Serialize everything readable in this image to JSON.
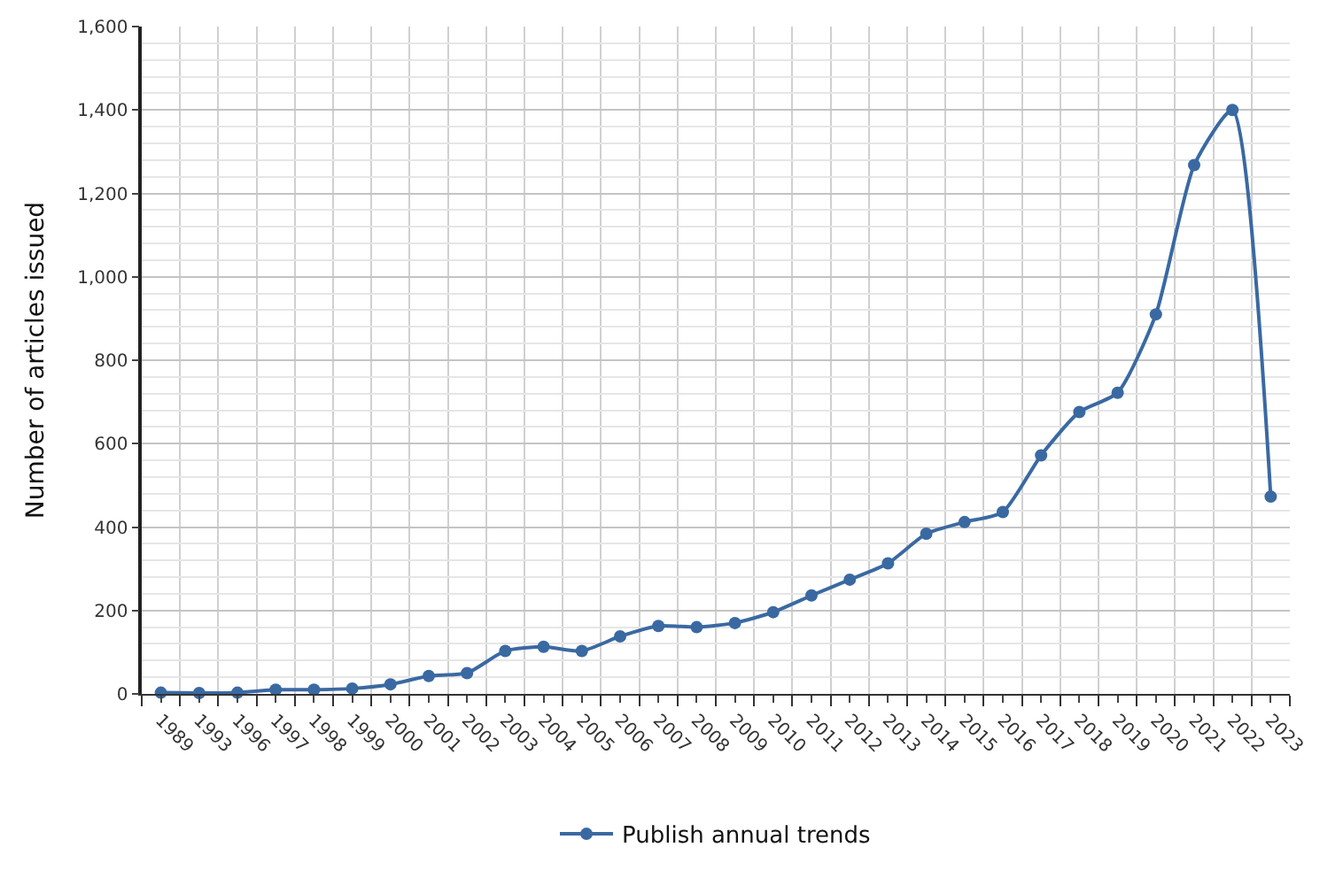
{
  "chart_data": {
    "type": "line",
    "ylabel": "Number of articles issued",
    "categories": [
      "1989",
      "1993",
      "1996",
      "1997",
      "1998",
      "1999",
      "2000",
      "2001",
      "2002",
      "2003",
      "2004",
      "2005",
      "2006",
      "2007",
      "2008",
      "2009",
      "2010",
      "2011",
      "2012",
      "2013",
      "2014",
      "2015",
      "2016",
      "2017",
      "2018",
      "2019",
      "2020",
      "2021",
      "2022",
      "2023"
    ],
    "series": [
      {
        "name": "Publish annual trends",
        "color": "#3a69a2",
        "values": [
          3,
          2,
          3,
          10,
          10,
          13,
          23,
          43,
          50,
          103,
          113,
          103,
          138,
          163,
          160,
          170,
          196,
          236,
          274,
          313,
          384,
          412,
          436,
          572,
          676,
          722,
          910,
          1268,
          1400,
          473
        ]
      }
    ],
    "ylim": [
      0,
      1600
    ],
    "yticks": [
      0,
      200,
      400,
      600,
      800,
      {
        "value": 1000,
        "label": "1,000"
      },
      {
        "value": 1200,
        "label": "1,200"
      },
      {
        "value": 1400,
        "label": "1,400"
      },
      {
        "value": 1600,
        "label": "1,600"
      }
    ],
    "grid": true,
    "legend": "bottom",
    "marker": "circle",
    "line_style": "solid"
  }
}
